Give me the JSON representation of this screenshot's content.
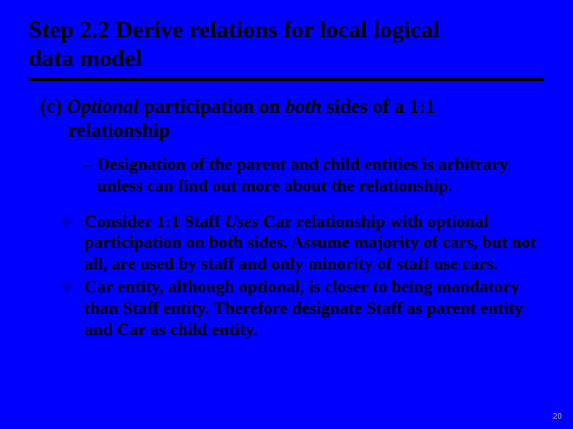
{
  "colors": {
    "background": "#0000ff",
    "text": "#000000",
    "rule": "#000000",
    "diamond": "#0000d0",
    "pagenum": "#c0b060"
  },
  "typography": {
    "title_fontsize": 30,
    "section_fontsize": 25,
    "body_fontsize": 22,
    "pagenum_fontsize": 10,
    "font_family": "Times New Roman"
  },
  "title": {
    "line1": "Step 2.2  Derive relations for local logical",
    "line2": "data model"
  },
  "section_c": {
    "prefix": "(c) ",
    "word_optional": "Optional",
    "mid": " participation on ",
    "word_both": "both",
    "tail": " sides of a 1:1",
    "cont": "relationship"
  },
  "dash": {
    "marker": "–",
    "text": "Designation of the parent and child entities is arbitrary unless can find out more about the relationship."
  },
  "bullets": [
    {
      "pre": "Consider 1:1 Staff ",
      "italic": "Uses",
      "post": " Car relationship with optional participation on both sides. Assume majority of cars, but not all, are used by staff and only minority of staff use cars."
    },
    {
      "pre": "",
      "italic": "",
      "post": "Car entity, although optional, is closer to being mandatory than Staff entity. Therefore designate Staff as parent entity and Car as child entity."
    }
  ],
  "page_number": "20"
}
